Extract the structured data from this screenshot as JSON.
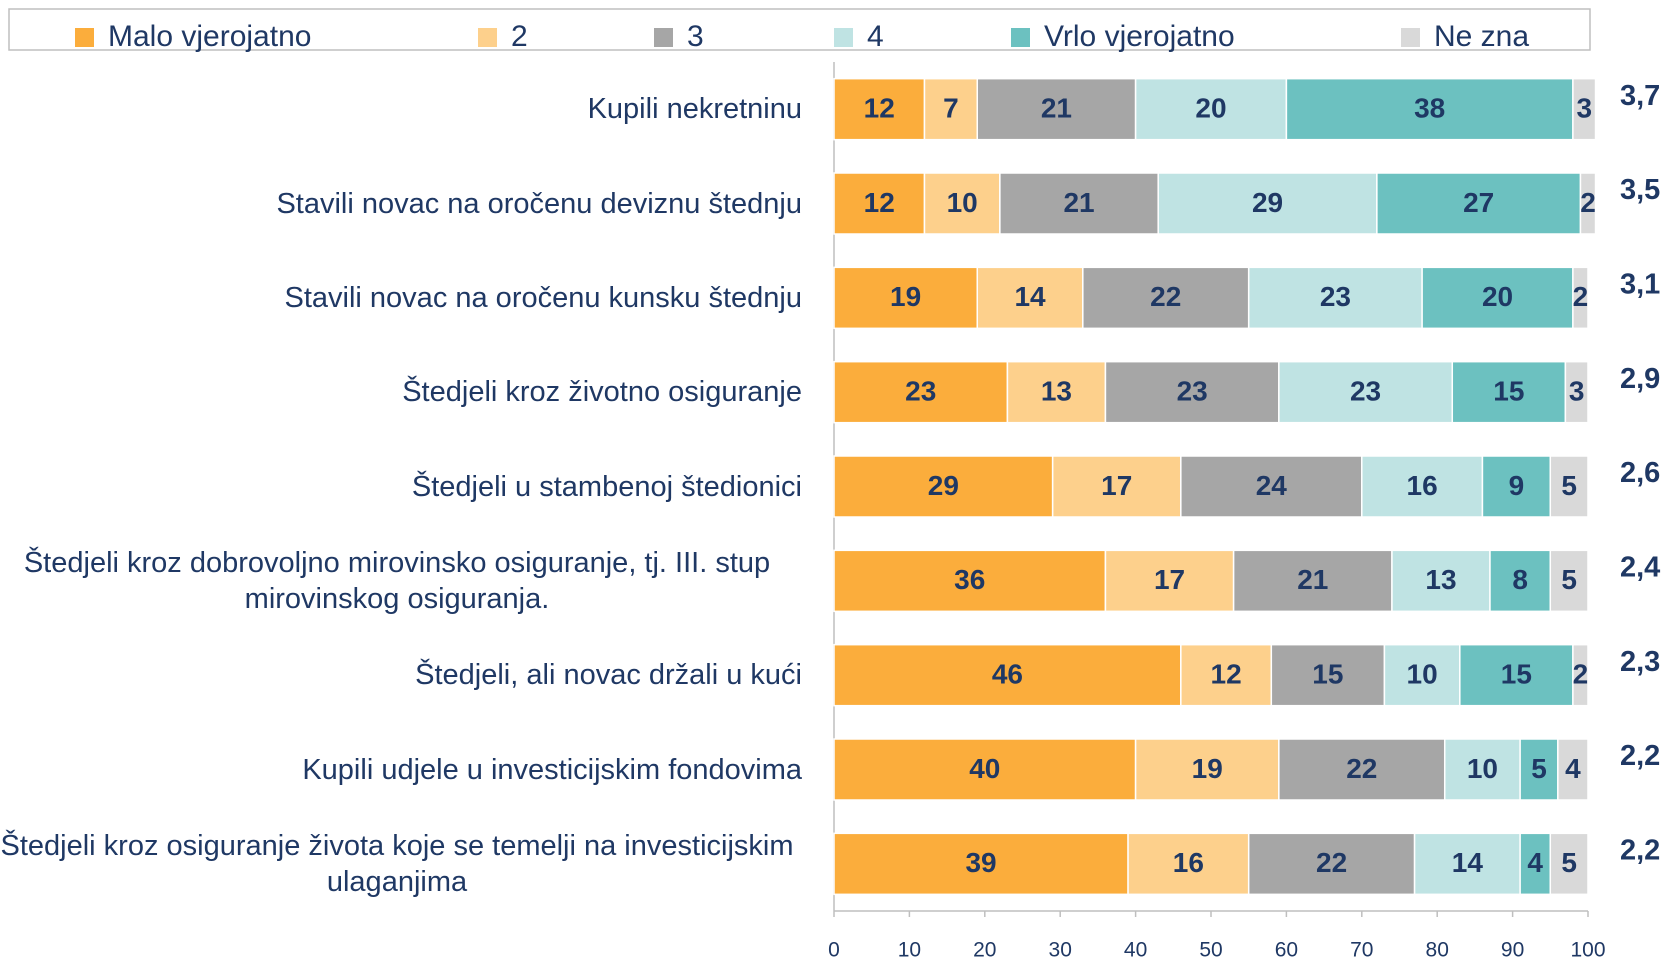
{
  "chart_data": {
    "type": "stacked-bar-horizontal",
    "categories": [
      "Kupili nekretninu",
      "Stavili novac na oročenu deviznu štednju",
      "Stavili novac na oročenu kunsku štednju",
      "Štedjeli kroz životno osiguranje",
      "Štedjeli u stambenoj štedionici",
      "Štedjeli kroz dobrovoljno mirovinsko osiguranje, tj. III. stup mirovinskog osiguranja.",
      "Štedjeli, ali novac držali u kući",
      "Kupili udjele u investicijskim fondovima",
      "Štedjeli kroz osiguranje života koje se temelji na investicijskim ulaganjima"
    ],
    "series": [
      {
        "name": "Malo vjerojatno",
        "color": "#fbad3c",
        "values": [
          12,
          12,
          19,
          23,
          29,
          36,
          46,
          40,
          39
        ]
      },
      {
        "name": "2",
        "color": "#fdd08c",
        "values": [
          7,
          10,
          14,
          13,
          17,
          17,
          12,
          19,
          16
        ]
      },
      {
        "name": "3",
        "color": "#a6a6a6",
        "values": [
          21,
          21,
          22,
          23,
          24,
          21,
          15,
          22,
          22
        ]
      },
      {
        "name": "4",
        "color": "#bfe3e3",
        "values": [
          20,
          29,
          23,
          23,
          16,
          13,
          10,
          10,
          14
        ]
      },
      {
        "name": "Vrlo vjerojatno",
        "color": "#6cc1c0",
        "values": [
          38,
          27,
          20,
          15,
          9,
          8,
          15,
          5,
          4
        ]
      },
      {
        "name": "Ne zna",
        "color": "#d9d9d9",
        "values": [
          3,
          2,
          2,
          3,
          5,
          5,
          2,
          4,
          5
        ]
      }
    ],
    "averages": {
      "values": [
        3.7,
        3.5,
        3.1,
        2.9,
        2.6,
        2.4,
        2.3,
        2.2,
        2.2
      ],
      "value_labels": [
        "3,7",
        "3,5",
        "3,1",
        "2,9",
        "2,6",
        "2,4",
        "2,3",
        "2,2",
        "2,2"
      ]
    },
    "xlim": [
      0,
      100
    ],
    "xticks": [
      0,
      10,
      20,
      30,
      40,
      50,
      60,
      70,
      80,
      90,
      100
    ],
    "legend": "top"
  }
}
